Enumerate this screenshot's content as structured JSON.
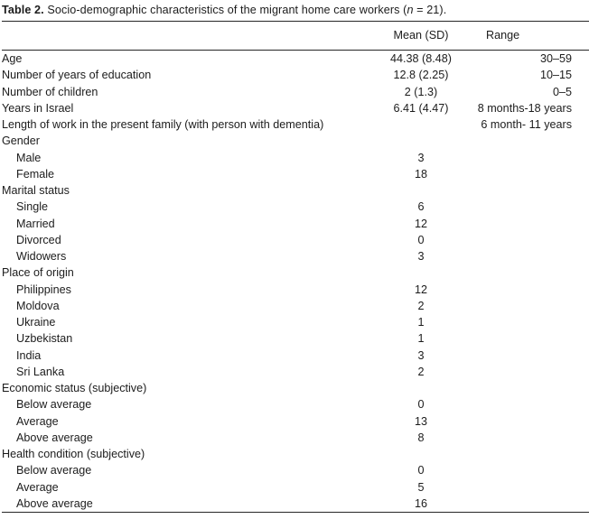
{
  "title": {
    "label": "Table 2.",
    "text": " Socio-demographic characteristics of the migrant home care workers (",
    "n": "n",
    "end": " = 21)."
  },
  "columns": {
    "characteristic": "",
    "mean_sd": "Mean (SD)",
    "range": "Range"
  },
  "table": {
    "rows": [
      {
        "label": "Age",
        "indent": 0,
        "mean": "44.38 (8.48)",
        "range": "30–59"
      },
      {
        "label": "Number of years of education",
        "indent": 0,
        "mean": "12.8 (2.25)",
        "range": "10–15"
      },
      {
        "label": "Number of children",
        "indent": 0,
        "mean": "2 (1.3)",
        "range": "0–5"
      },
      {
        "label": "Years in Israel",
        "indent": 0,
        "mean": "6.41 (4.47)",
        "range": "8 months-18 years"
      },
      {
        "label": "Length of work in the present family (with person with dementia)",
        "indent": 0,
        "mean": "",
        "range": "6 month- 11 years"
      },
      {
        "label": "Gender",
        "indent": 0,
        "mean": "",
        "range": ""
      },
      {
        "label": "Male",
        "indent": 1,
        "mean": "3",
        "range": ""
      },
      {
        "label": "Female",
        "indent": 1,
        "mean": "18",
        "range": ""
      },
      {
        "label": "Marital status",
        "indent": 0,
        "mean": "",
        "range": ""
      },
      {
        "label": "Single",
        "indent": 1,
        "mean": "6",
        "range": ""
      },
      {
        "label": "Married",
        "indent": 1,
        "mean": "12",
        "range": ""
      },
      {
        "label": "Divorced",
        "indent": 1,
        "mean": "0",
        "range": ""
      },
      {
        "label": "Widowers",
        "indent": 1,
        "mean": "3",
        "range": ""
      },
      {
        "label": "Place of origin",
        "indent": 0,
        "mean": "",
        "range": ""
      },
      {
        "label": "Philippines",
        "indent": 1,
        "mean": "12",
        "range": ""
      },
      {
        "label": "Moldova",
        "indent": 1,
        "mean": "2",
        "range": ""
      },
      {
        "label": "Ukraine",
        "indent": 1,
        "mean": "1",
        "range": ""
      },
      {
        "label": "Uzbekistan",
        "indent": 1,
        "mean": "1",
        "range": ""
      },
      {
        "label": "India",
        "indent": 1,
        "mean": "3",
        "range": ""
      },
      {
        "label": "Sri Lanka",
        "indent": 1,
        "mean": "2",
        "range": ""
      },
      {
        "label": "Economic status (subjective)",
        "indent": 0,
        "mean": "",
        "range": ""
      },
      {
        "label": "Below average",
        "indent": 1,
        "mean": "0",
        "range": ""
      },
      {
        "label": "Average",
        "indent": 1,
        "mean": "13",
        "range": ""
      },
      {
        "label": "Above average",
        "indent": 1,
        "mean": "8",
        "range": ""
      },
      {
        "label": "Health condition (subjective)",
        "indent": 0,
        "mean": "",
        "range": ""
      },
      {
        "label": "Below average",
        "indent": 1,
        "mean": "0",
        "range": ""
      },
      {
        "label": "Average",
        "indent": 1,
        "mean": "5",
        "range": ""
      },
      {
        "label": "Above average",
        "indent": 1,
        "mean": "16",
        "range": ""
      }
    ]
  }
}
